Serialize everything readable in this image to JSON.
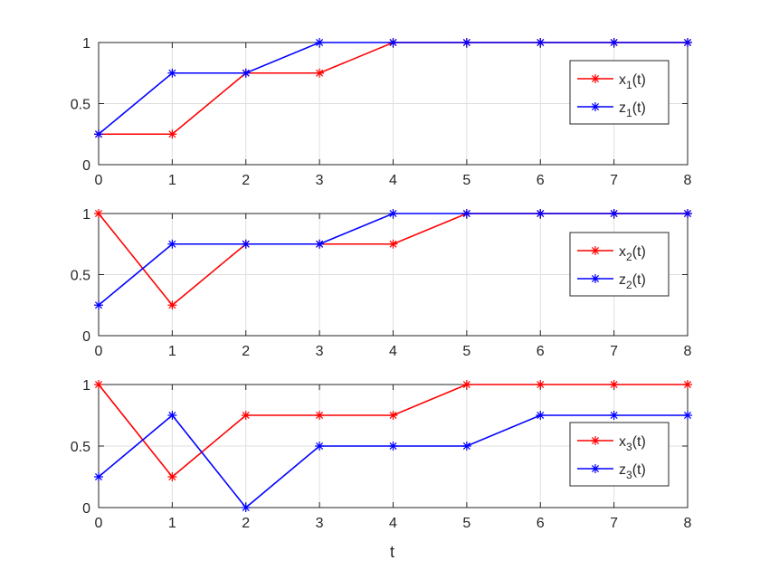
{
  "chart_data": [
    {
      "type": "line",
      "xlim": [
        0,
        8
      ],
      "ylim": [
        0,
        1
      ],
      "xticks": [
        "0",
        "1",
        "2",
        "3",
        "4",
        "5",
        "6",
        "7",
        "8"
      ],
      "yticks": [
        "0",
        "0.5",
        "1"
      ],
      "grid": true,
      "legend_placement": "right",
      "x": [
        0,
        1,
        2,
        3,
        4,
        5,
        6,
        7,
        8
      ],
      "series": [
        {
          "name": "x",
          "sub": "1",
          "suffix": "(t)",
          "color": "#ff0000",
          "marker": "asterisk",
          "values": [
            0.25,
            0.25,
            0.75,
            0.75,
            1,
            1,
            1,
            1,
            1
          ]
        },
        {
          "name": "z",
          "sub": "1",
          "suffix": "(t)",
          "color": "#0000ff",
          "marker": "asterisk",
          "values": [
            0.25,
            0.75,
            0.75,
            1,
            1,
            1,
            1,
            1,
            1
          ]
        }
      ]
    },
    {
      "type": "line",
      "xlim": [
        0,
        8
      ],
      "ylim": [
        0,
        1
      ],
      "xticks": [
        "0",
        "1",
        "2",
        "3",
        "4",
        "5",
        "6",
        "7",
        "8"
      ],
      "yticks": [
        "0",
        "0.5",
        "1"
      ],
      "grid": true,
      "legend_placement": "right",
      "x": [
        0,
        1,
        2,
        3,
        4,
        5,
        6,
        7,
        8
      ],
      "series": [
        {
          "name": "x",
          "sub": "2",
          "suffix": "(t)",
          "color": "#ff0000",
          "marker": "asterisk",
          "values": [
            1,
            0.25,
            0.75,
            0.75,
            0.75,
            1,
            1,
            1,
            1
          ]
        },
        {
          "name": "z",
          "sub": "2",
          "suffix": "(t)",
          "color": "#0000ff",
          "marker": "asterisk",
          "values": [
            0.25,
            0.75,
            0.75,
            0.75,
            1,
            1,
            1,
            1,
            1
          ]
        }
      ]
    },
    {
      "type": "line",
      "xlim": [
        0,
        8
      ],
      "ylim": [
        0,
        1
      ],
      "xticks": [
        "0",
        "1",
        "2",
        "3",
        "4",
        "5",
        "6",
        "7",
        "8"
      ],
      "yticks": [
        "0",
        "0.5",
        "1"
      ],
      "grid": true,
      "legend_placement": "right",
      "xlabel": "t",
      "x": [
        0,
        1,
        2,
        3,
        4,
        5,
        6,
        7,
        8
      ],
      "series": [
        {
          "name": "x",
          "sub": "3",
          "suffix": "(t)",
          "color": "#ff0000",
          "marker": "asterisk",
          "values": [
            1,
            0.25,
            0.75,
            0.75,
            0.75,
            1,
            1,
            1,
            1
          ]
        },
        {
          "name": "z",
          "sub": "3",
          "suffix": "(t)",
          "color": "#0000ff",
          "marker": "asterisk",
          "values": [
            0.25,
            0.75,
            0,
            0.5,
            0.5,
            0.5,
            0.75,
            0.75,
            0.75
          ]
        }
      ]
    }
  ]
}
